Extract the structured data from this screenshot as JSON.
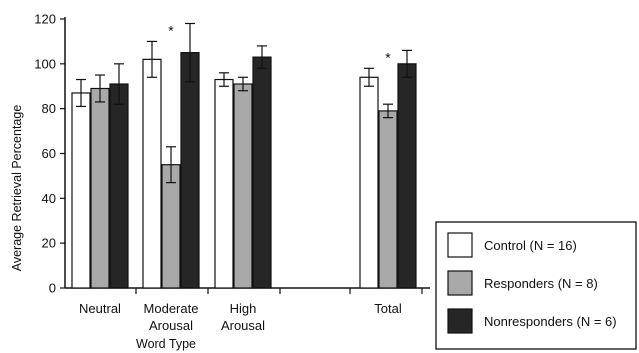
{
  "chart_data": {
    "type": "bar",
    "ylabel": "Average Retrieval Percentage",
    "xlabel": "Word Type",
    "ylim": [
      0,
      120
    ],
    "yticks": [
      0,
      20,
      40,
      60,
      80,
      100,
      120
    ],
    "categories": [
      {
        "lines": [
          "Neutral"
        ]
      },
      {
        "lines": [
          "Moderate",
          "Arousal"
        ]
      },
      {
        "lines": [
          "High",
          "Arousal"
        ]
      },
      {
        "lines": [
          "Total"
        ]
      }
    ],
    "series": [
      {
        "name": "Control (N = 16)",
        "color": "#ffffff",
        "values": [
          87,
          102,
          93,
          94
        ],
        "errors": [
          6,
          8,
          3,
          4
        ]
      },
      {
        "name": "Responders (N = 8)",
        "color": "#a9a9a9",
        "values": [
          89,
          55,
          91,
          79
        ],
        "errors": [
          6,
          8,
          3,
          3
        ]
      },
      {
        "name": "Nonresponders (N = 6)",
        "color": "#262626",
        "values": [
          91,
          105,
          103,
          100
        ],
        "errors": [
          9,
          13,
          5,
          6
        ]
      }
    ],
    "annotations": [
      {
        "category": 1,
        "text": "*"
      },
      {
        "category": 3,
        "text": "*"
      }
    ],
    "legend_position": "bottom-right",
    "grid": false
  }
}
